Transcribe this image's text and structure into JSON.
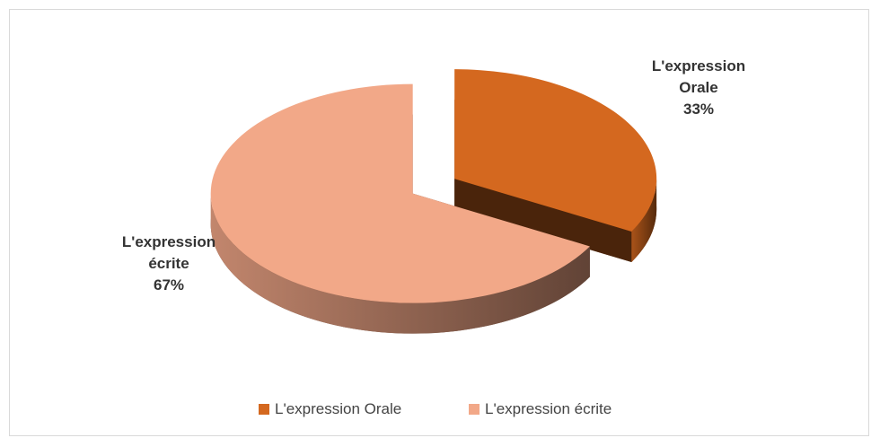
{
  "chart_data": {
    "type": "pie3d",
    "categories": [
      "L'expression Orale",
      "L'expression écrite"
    ],
    "values": [
      33,
      67
    ],
    "value_labels": [
      "33%",
      "67%"
    ],
    "colors": [
      "#d4681f",
      "#f2a888"
    ],
    "legend": "bottom"
  }
}
